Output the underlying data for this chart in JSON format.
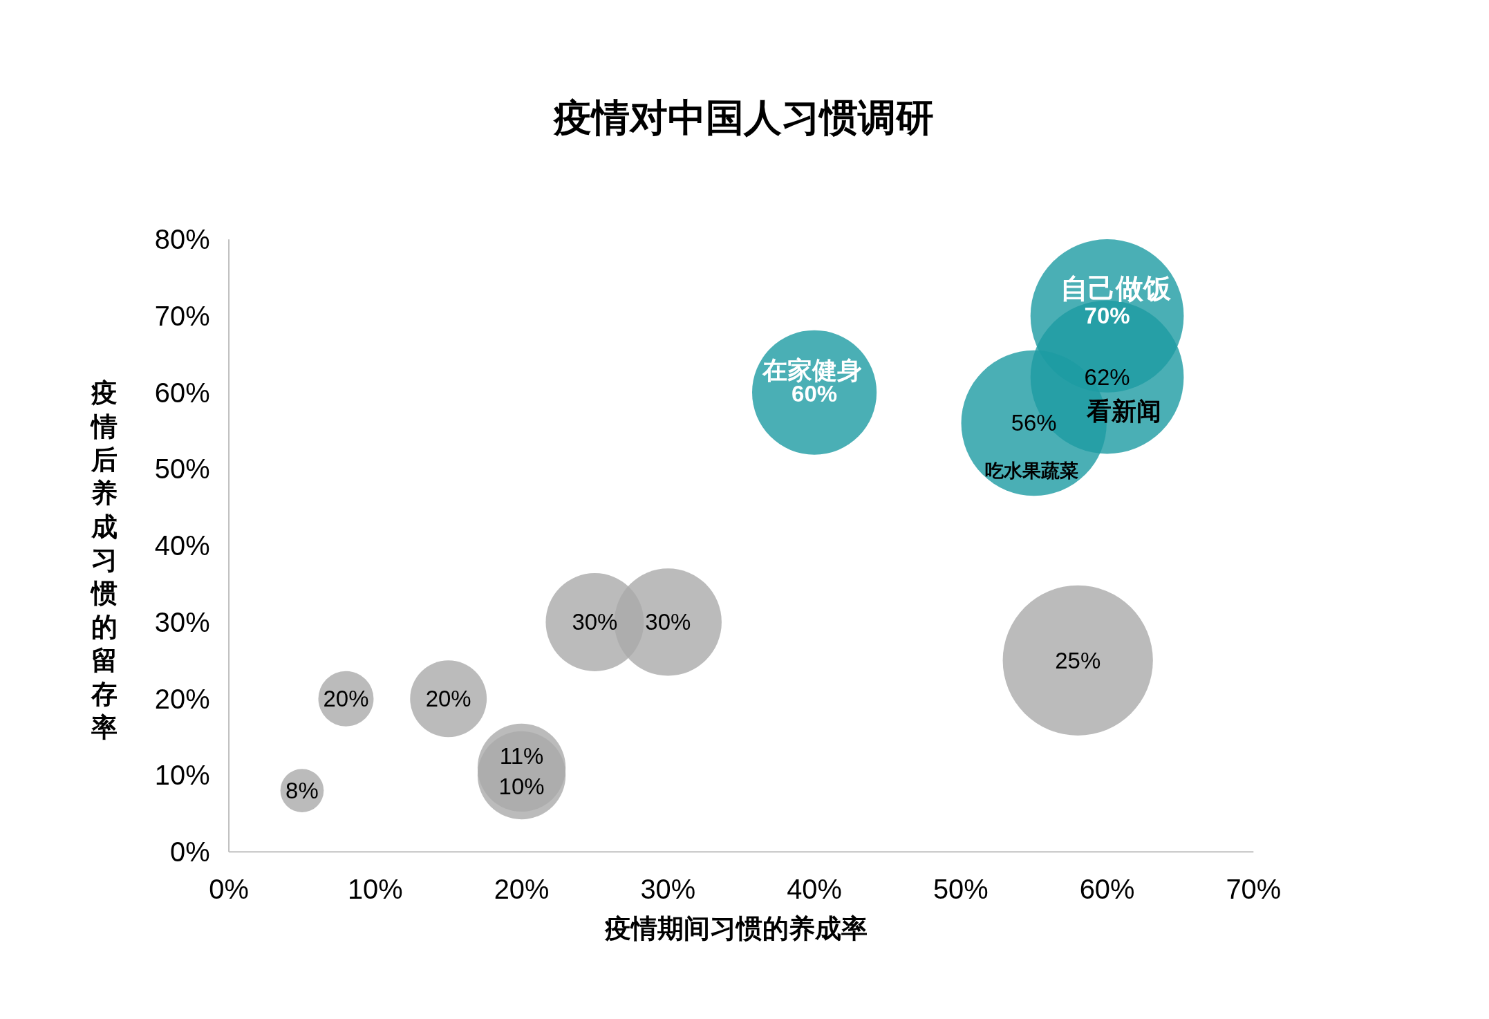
{
  "chart_data": {
    "type": "bubble",
    "title": "疫情对中国人习惯调研",
    "xlabel": "疫情期间习惯的养成率",
    "ylabel": "疫情后养成习惯的留存率",
    "x": [
      60,
      60,
      55,
      40,
      25,
      30,
      58,
      8,
      15,
      20,
      20,
      5
    ],
    "values": [
      70,
      62,
      56,
      60,
      30,
      30,
      25,
      20,
      20,
      11,
      10,
      8
    ],
    "sizes": [
      1,
      1,
      0.9,
      0.66,
      0.41,
      0.49,
      0.96,
      0.13,
      0.25,
      0.33,
      0.33,
      0.08
    ],
    "colors": [
      "#4aafb5",
      "#4aafb5",
      "#4aafb5",
      "#4aafb5",
      "#bbbbbb",
      "#bbbbbb",
      "#bbbbbb",
      "#bbbbbb",
      "#bbbbbb",
      "#bbbbbb",
      "#bbbbbb",
      "#bbbbbb"
    ],
    "value_labels": [
      "70%",
      "62%",
      "56%",
      "60%",
      "30%",
      "30%",
      "25%",
      "20%",
      "20%",
      "11%",
      "10%",
      "8%"
    ],
    "annotations": [
      {
        "text": "自己做饭",
        "x": 60,
        "y": 70
      },
      {
        "text": "看新闻",
        "x": 60,
        "y": 62
      },
      {
        "text": "吃水果蔬菜",
        "x": 55,
        "y": 56
      },
      {
        "text": "在家健身",
        "x": 40,
        "y": 60
      }
    ],
    "xlim": [
      0,
      70
    ],
    "xticks": [
      {
        "value": 0,
        "label": "0%"
      },
      {
        "value": 10,
        "label": "10%"
      },
      {
        "value": 20,
        "label": "20%"
      },
      {
        "value": 30,
        "label": "30%"
      },
      {
        "value": 40,
        "label": "40%"
      },
      {
        "value": 50,
        "label": "50%"
      },
      {
        "value": 60,
        "label": "60%"
      },
      {
        "value": 70,
        "label": "70%"
      }
    ],
    "ylim": [
      0,
      80
    ],
    "yticks": [
      {
        "value": 0,
        "label": "0%"
      },
      {
        "value": 10,
        "label": "10%"
      },
      {
        "value": 20,
        "label": "20%"
      },
      {
        "value": 30,
        "label": "30%"
      },
      {
        "value": 40,
        "label": "40%"
      },
      {
        "value": 50,
        "label": "50%"
      },
      {
        "value": 60,
        "label": "60%"
      },
      {
        "value": 70,
        "label": "70%"
      },
      {
        "value": 80,
        "label": "80%"
      }
    ]
  }
}
